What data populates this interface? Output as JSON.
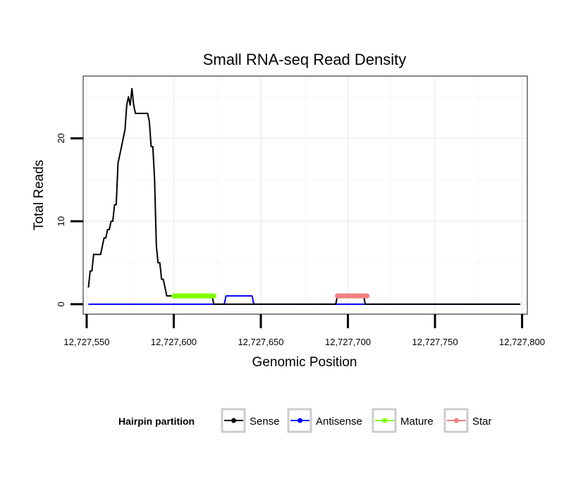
{
  "chart_data": {
    "type": "line",
    "title": "Small RNA-seq Read Density",
    "xlabel": "Genomic Position",
    "ylabel": "Total Reads",
    "xlim": [
      12727548,
      12727803
    ],
    "ylim": [
      -1.2,
      27.5
    ],
    "x_ticks": [
      12727550,
      12727600,
      12727650,
      12727700,
      12727750,
      12727800
    ],
    "x_tick_labels": [
      "12,727,550",
      "12,727,600",
      "12,727,650",
      "12,727,700",
      "12,727,750",
      "12,727,800"
    ],
    "y_ticks": [
      0,
      10,
      20
    ],
    "y_tick_labels": [
      "0",
      "10",
      "20"
    ],
    "grid": true,
    "legend": {
      "title": "Hairpin partition",
      "position": "bottom",
      "entries": [
        "Sense",
        "Antisense",
        "Mature",
        "Star"
      ]
    },
    "series": [
      {
        "name": "Sense",
        "color": "#000000",
        "points": [
          [
            12727551,
            2
          ],
          [
            12727552,
            4
          ],
          [
            12727553,
            4
          ],
          [
            12727554,
            6
          ],
          [
            12727555,
            6
          ],
          [
            12727556,
            6
          ],
          [
            12727557,
            6
          ],
          [
            12727558,
            6
          ],
          [
            12727559,
            7
          ],
          [
            12727560,
            8
          ],
          [
            12727561,
            8
          ],
          [
            12727562,
            9
          ],
          [
            12727563,
            9
          ],
          [
            12727564,
            10
          ],
          [
            12727565,
            10
          ],
          [
            12727566,
            12
          ],
          [
            12727567,
            12
          ],
          [
            12727568,
            17
          ],
          [
            12727569,
            18
          ],
          [
            12727570,
            19
          ],
          [
            12727571,
            20
          ],
          [
            12727572,
            21
          ],
          [
            12727573,
            24
          ],
          [
            12727574,
            25
          ],
          [
            12727575,
            24
          ],
          [
            12727576,
            26
          ],
          [
            12727577,
            24
          ],
          [
            12727578,
            23
          ],
          [
            12727579,
            23
          ],
          [
            12727580,
            23
          ],
          [
            12727581,
            23
          ],
          [
            12727582,
            23
          ],
          [
            12727583,
            23
          ],
          [
            12727584,
            23
          ],
          [
            12727585,
            23
          ],
          [
            12727586,
            22
          ],
          [
            12727587,
            19
          ],
          [
            12727588,
            19
          ],
          [
            12727589,
            15
          ],
          [
            12727590,
            7
          ],
          [
            12727591,
            5
          ],
          [
            12727592,
            5
          ],
          [
            12727593,
            3
          ],
          [
            12727594,
            3
          ],
          [
            12727595,
            2
          ],
          [
            12727596,
            1
          ],
          [
            12727597,
            1
          ],
          [
            12727598,
            1
          ],
          [
            12727599,
            1
          ],
          [
            12727600,
            1
          ],
          [
            12727601,
            1
          ],
          [
            12727621,
            1
          ],
          [
            12727622,
            1
          ],
          [
            12727623,
            0
          ],
          [
            12727693,
            0
          ],
          [
            12727694,
            1
          ],
          [
            12727709,
            1
          ],
          [
            12727710,
            0
          ],
          [
            12727799,
            0
          ]
        ]
      },
      {
        "name": "Antisense",
        "color": "#0000ff",
        "points": [
          [
            12727551,
            0
          ],
          [
            12727629,
            0
          ],
          [
            12727630,
            1
          ],
          [
            12727645,
            1
          ],
          [
            12727646,
            0
          ],
          [
            12727799,
            0
          ]
        ]
      },
      {
        "name": "Mature",
        "color": "#80ff00",
        "points": [
          [
            12727600,
            1
          ],
          [
            12727623,
            1
          ]
        ]
      },
      {
        "name": "Star",
        "color": "#f08080",
        "points": [
          [
            12727694,
            1
          ],
          [
            12727711,
            1
          ]
        ]
      }
    ]
  }
}
